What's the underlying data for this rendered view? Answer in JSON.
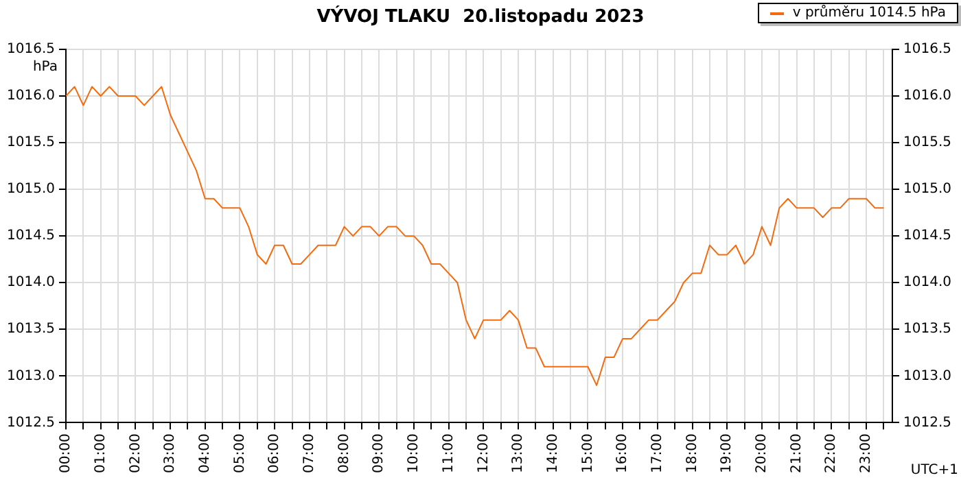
{
  "chart_data": {
    "type": "line",
    "title": "VÝVOJ TLAKU  20.listopadu 2023",
    "xlabel": "UTC+1",
    "ylabel": "hPa",
    "x": [
      0,
      0.25,
      0.5,
      0.75,
      1,
      1.25,
      1.5,
      1.75,
      2,
      2.25,
      2.5,
      2.75,
      3,
      3.25,
      3.5,
      3.75,
      4,
      4.25,
      4.5,
      4.75,
      5,
      5.25,
      5.5,
      5.75,
      6,
      6.25,
      6.5,
      6.75,
      7,
      7.25,
      7.5,
      7.75,
      8,
      8.25,
      8.5,
      8.75,
      9,
      9.25,
      9.5,
      9.75,
      10,
      10.25,
      10.5,
      10.75,
      11,
      11.25,
      11.5,
      11.75,
      12,
      12.25,
      12.5,
      12.75,
      13,
      13.25,
      13.5,
      13.75,
      14,
      14.25,
      14.5,
      14.75,
      15,
      15.25,
      15.5,
      15.75,
      16,
      16.25,
      16.5,
      16.75,
      17,
      17.25,
      17.5,
      17.75,
      18,
      18.25,
      18.5,
      18.75,
      19,
      19.25,
      19.5,
      19.75,
      20,
      20.25,
      20.5,
      20.75,
      21,
      21.25,
      21.5,
      21.75,
      22,
      22.25,
      22.5,
      22.75,
      23,
      23.25,
      23.5
    ],
    "series": [
      {
        "name": "v průměru 1014.5 hPa",
        "color": "#f26b0f",
        "values": [
          1016.0,
          1016.1,
          1015.9,
          1016.1,
          1016.0,
          1016.1,
          1016.0,
          1016.0,
          1016.0,
          1015.9,
          1016.0,
          1016.1,
          1015.8,
          1015.6,
          1015.4,
          1015.2,
          1014.9,
          1014.9,
          1014.8,
          1014.8,
          1014.8,
          1014.6,
          1014.3,
          1014.2,
          1014.4,
          1014.4,
          1014.2,
          1014.2,
          1014.3,
          1014.4,
          1014.4,
          1014.4,
          1014.6,
          1014.5,
          1014.6,
          1014.6,
          1014.5,
          1014.6,
          1014.6,
          1014.5,
          1014.5,
          1014.4,
          1014.2,
          1014.2,
          1014.1,
          1014.0,
          1013.6,
          1013.4,
          1013.6,
          1013.6,
          1013.6,
          1013.7,
          1013.6,
          1013.3,
          1013.3,
          1013.1,
          1013.1,
          1013.1,
          1013.1,
          1013.1,
          1013.1,
          1012.9,
          1013.2,
          1013.2,
          1013.4,
          1013.4,
          1013.5,
          1013.6,
          1013.6,
          1013.7,
          1013.8,
          1014.0,
          1014.1,
          1014.1,
          1014.4,
          1014.3,
          1014.3,
          1014.4,
          1014.2,
          1014.3,
          1014.6,
          1014.4,
          1014.8,
          1014.9,
          1014.8,
          1014.8,
          1014.8,
          1014.7,
          1014.8,
          1014.8,
          1014.9,
          1014.9,
          1014.9,
          1014.8,
          1014.8
        ]
      }
    ],
    "xlim": [
      0,
      23.75
    ],
    "xticks": [
      {
        "value": 0,
        "label": "00:00"
      },
      {
        "value": 0.5,
        "label": null
      },
      {
        "value": 1,
        "label": "01:00"
      },
      {
        "value": 1.5,
        "label": null
      },
      {
        "value": 2,
        "label": "02:00"
      },
      {
        "value": 2.5,
        "label": null
      },
      {
        "value": 3,
        "label": "03:00"
      },
      {
        "value": 3.5,
        "label": null
      },
      {
        "value": 4,
        "label": "04:00"
      },
      {
        "value": 4.5,
        "label": null
      },
      {
        "value": 5,
        "label": "05:00"
      },
      {
        "value": 5.5,
        "label": null
      },
      {
        "value": 6,
        "label": "06:00"
      },
      {
        "value": 6.5,
        "label": null
      },
      {
        "value": 7,
        "label": "07:00"
      },
      {
        "value": 7.5,
        "label": null
      },
      {
        "value": 8,
        "label": "08:00"
      },
      {
        "value": 8.5,
        "label": null
      },
      {
        "value": 9,
        "label": "09:00"
      },
      {
        "value": 9.5,
        "label": null
      },
      {
        "value": 10,
        "label": "10:00"
      },
      {
        "value": 10.5,
        "label": null
      },
      {
        "value": 11,
        "label": "11:00"
      },
      {
        "value": 11.5,
        "label": null
      },
      {
        "value": 12,
        "label": "12:00"
      },
      {
        "value": 12.5,
        "label": null
      },
      {
        "value": 13,
        "label": "13:00"
      },
      {
        "value": 13.5,
        "label": null
      },
      {
        "value": 14,
        "label": "14:00"
      },
      {
        "value": 14.5,
        "label": null
      },
      {
        "value": 15,
        "label": "15:00"
      },
      {
        "value": 15.5,
        "label": null
      },
      {
        "value": 16,
        "label": "16:00"
      },
      {
        "value": 16.5,
        "label": null
      },
      {
        "value": 17,
        "label": "17:00"
      },
      {
        "value": 17.5,
        "label": null
      },
      {
        "value": 18,
        "label": "18:00"
      },
      {
        "value": 18.5,
        "label": null
      },
      {
        "value": 19,
        "label": "19:00"
      },
      {
        "value": 19.5,
        "label": null
      },
      {
        "value": 20,
        "label": "20:00"
      },
      {
        "value": 20.5,
        "label": null
      },
      {
        "value": 21,
        "label": "21:00"
      },
      {
        "value": 21.5,
        "label": null
      },
      {
        "value": 22,
        "label": "22:00"
      },
      {
        "value": 22.5,
        "label": null
      },
      {
        "value": 23,
        "label": "23:00"
      },
      {
        "value": 23.5,
        "label": null
      }
    ],
    "ylim": [
      1012.5,
      1016.5
    ],
    "yticks": [
      1012.5,
      {
        "value": 1013,
        "label": "1013.0"
      },
      1013.5,
      {
        "value": 1014,
        "label": "1014.0"
      },
      1014.5,
      {
        "value": 1015,
        "label": "1015.0"
      },
      1015.5,
      {
        "value": 1016,
        "label": "1016.0"
      },
      1016.5
    ],
    "y2lim": [
      1012.5,
      1016.5
    ],
    "y2ticks": [
      1012.5,
      {
        "value": 1013,
        "label": "1013.0"
      },
      1013.5,
      {
        "value": 1014,
        "label": "1014.0"
      },
      1014.5,
      {
        "value": 1015,
        "label": "1015.0"
      },
      1015.5,
      {
        "value": 1016,
        "label": "1016.0"
      },
      1016.5
    ],
    "grid": true,
    "legend": "top right",
    "marker": "none",
    "line_style": "solid"
  }
}
